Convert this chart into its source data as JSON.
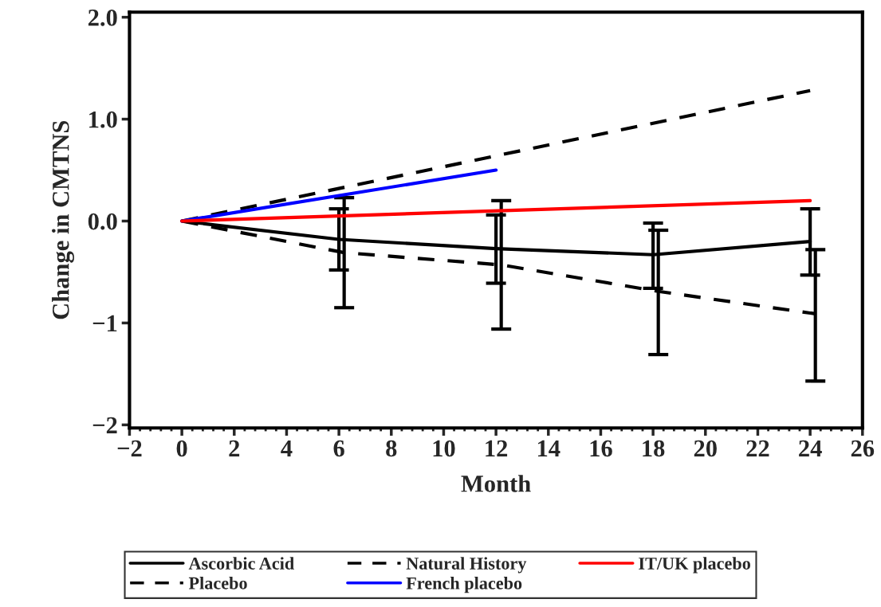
{
  "chart_data": {
    "type": "line",
    "xlabel": "Month",
    "ylabel": "Change in CMTNS",
    "xlim": [
      -2,
      26
    ],
    "xticks": [
      -2,
      0,
      2,
      4,
      6,
      8,
      10,
      12,
      14,
      16,
      18,
      20,
      22,
      24,
      26
    ],
    "ylim": [
      -2.03,
      2.05
    ],
    "yticks": [
      {
        "value": -2,
        "label": "−2"
      },
      {
        "value": -1,
        "label": "−1"
      },
      {
        "value": 0,
        "label": "0.0"
      },
      {
        "value": 1,
        "label": "1.0"
      },
      {
        "value": 2,
        "label": "2.0"
      }
    ],
    "grid": false,
    "legend": "bottom",
    "marker": "none",
    "series": [
      {
        "name": "Ascorbic Acid",
        "color": "#000000",
        "line_style": "solid",
        "x": [
          0,
          6,
          12,
          18,
          24
        ],
        "values": [
          0,
          -0.18,
          -0.27,
          -0.33,
          -0.2
        ],
        "errors": [
          null,
          [
            -0.48,
            0.12
          ],
          [
            -0.61,
            0.06
          ],
          [
            -0.66,
            -0.02
          ],
          [
            -0.53,
            0.12
          ]
        ]
      },
      {
        "name": "Placebo",
        "color": "#000000",
        "line_style": "dashed",
        "x": [
          0,
          6.2,
          12.2,
          18.2,
          24.2
        ],
        "values": [
          0,
          -0.31,
          -0.43,
          -0.69,
          -0.91
        ],
        "errors": [
          null,
          [
            -0.85,
            0.23
          ],
          [
            -1.06,
            0.2
          ],
          [
            -1.31,
            -0.09
          ],
          [
            -1.57,
            -0.28
          ]
        ]
      },
      {
        "name": "Natural History",
        "color": "#000000",
        "line_style": "dashed",
        "x": [
          0,
          24
        ],
        "values": [
          0,
          1.28
        ]
      },
      {
        "name": "French placebo",
        "color": "#0000ff",
        "line_style": "solid",
        "x": [
          0,
          12
        ],
        "values": [
          0,
          0.5
        ]
      },
      {
        "name": "IT/UK placebo",
        "color": "#ff0000",
        "line_style": "solid",
        "x": [
          0,
          24
        ],
        "values": [
          0,
          0.2
        ]
      }
    ]
  }
}
